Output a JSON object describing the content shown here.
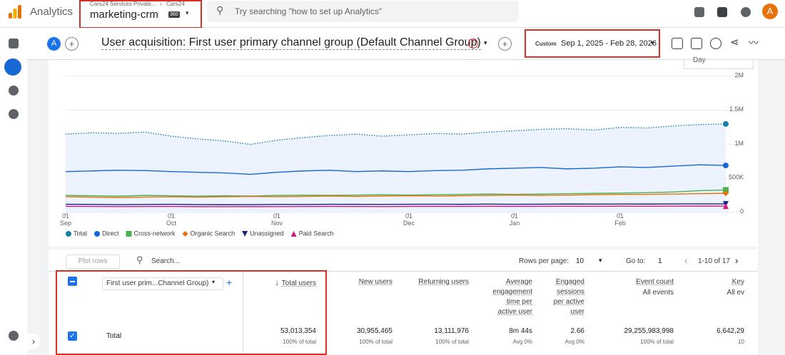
{
  "header": {
    "product": "Analytics",
    "account": "Cars24 Services Private...",
    "property_parent": "Cars24",
    "property": "marketing-crm",
    "badge": "360",
    "search_placeholder": "Try searching \"how to set up Analytics\"",
    "user_avatar": "A"
  },
  "report": {
    "comparison_avatar": "A",
    "title": "User acquisition: First user primary channel group (Default Channel Group)",
    "date_label": "Custom",
    "date_range": "Sep 1, 2025 - Feb 28, 2026",
    "interval": "Day"
  },
  "chart_data": {
    "type": "line",
    "categories": [
      "01\nSep",
      null,
      null,
      null,
      "01\nOct",
      null,
      null,
      null,
      "01\nNov",
      null,
      null,
      null,
      null,
      "01\nDec",
      null,
      null,
      null,
      "01\nJan",
      null,
      null,
      null,
      "01\nFeb",
      null,
      null,
      null,
      null
    ],
    "ylim": [
      0,
      2000000
    ],
    "yticks": [
      0,
      {
        "value": 500000,
        "label": "500K"
      },
      {
        "value": 1000000,
        "label": "1M"
      },
      {
        "value": 1500000,
        "label": "1.5M"
      },
      {
        "value": 2000000,
        "label": "2M"
      }
    ],
    "grid": true,
    "series": [
      {
        "name": "Total",
        "color": "#1a7fa8",
        "marker": "circle",
        "style": "dotted",
        "area": true,
        "values": [
          1150000,
          1170000,
          1160000,
          1180000,
          1120000,
          1080000,
          1050000,
          1000000,
          1060000,
          1100000,
          1130000,
          1150000,
          1120000,
          1140000,
          1160000,
          1150000,
          1180000,
          1200000,
          1220000,
          1230000,
          1210000,
          1250000,
          1240000,
          1270000,
          1290000,
          1300000
        ]
      },
      {
        "name": "Direct",
        "color": "#1967d2",
        "marker": "circle",
        "values": [
          600000,
          610000,
          620000,
          615000,
          600000,
          590000,
          580000,
          560000,
          590000,
          610000,
          620000,
          600000,
          610000,
          600000,
          615000,
          620000,
          640000,
          650000,
          660000,
          640000,
          650000,
          670000,
          660000,
          680000,
          700000,
          690000
        ]
      },
      {
        "name": "Cross-network",
        "color": "#4caf50",
        "marker": "square",
        "values": [
          250000,
          245000,
          240000,
          250000,
          245000,
          240000,
          245000,
          240000,
          250000,
          255000,
          250000,
          255000,
          260000,
          255000,
          260000,
          265000,
          270000,
          265000,
          270000,
          275000,
          280000,
          285000,
          290000,
          300000,
          320000,
          330000
        ]
      },
      {
        "name": "Organic Search",
        "color": "#e8710a",
        "marker": "diamond",
        "values": [
          230000,
          225000,
          220000,
          225000,
          230000,
          225000,
          230000,
          235000,
          230000,
          235000,
          240000,
          235000,
          240000,
          245000,
          240000,
          245000,
          250000,
          255000,
          250000,
          255000,
          260000,
          265000,
          265000,
          270000,
          275000,
          280000
        ]
      },
      {
        "name": "Unassigned",
        "color": "#1a237e",
        "marker": "triangle-down",
        "values": [
          120000,
          118000,
          115000,
          117000,
          120000,
          116000,
          114000,
          115000,
          118000,
          117000,
          120000,
          119000,
          118000,
          120000,
          121000,
          119000,
          122000,
          120000,
          121000,
          123000,
          122000,
          124000,
          123000,
          125000,
          126000,
          125000
        ]
      },
      {
        "name": "Paid Search",
        "color": "#d01884",
        "marker": "triangle-up",
        "values": [
          90000,
          88000,
          86000,
          87000,
          88000,
          85000,
          84000,
          85000,
          86000,
          87000,
          88000,
          87000,
          86000,
          88000,
          89000,
          88000,
          90000,
          89000,
          90000,
          91000,
          90000,
          92000,
          91000,
          92000,
          93000,
          92000
        ]
      }
    ]
  },
  "table": {
    "plot_rows": "Plot rows",
    "search": "Search...",
    "rows_per_page_label": "Rows per page:",
    "rows_per_page": "10",
    "goto_label": "Go to:",
    "goto": "1",
    "range": "1-10 of 17",
    "dimension": "First user prim...Channel Group)",
    "columns": [
      {
        "label": "Total users",
        "sorted": true
      },
      {
        "label": "New users"
      },
      {
        "label": "Returning users"
      },
      {
        "label": "Average engagement time per active user"
      },
      {
        "label": "Engaged sessions per active user"
      },
      {
        "label": "Event count",
        "sub": "All events"
      },
      {
        "label": "Key",
        "sub": "All ev"
      }
    ],
    "total_row": {
      "label": "Total",
      "cells": [
        {
          "value": "53,013,354",
          "sub": "100% of total"
        },
        {
          "value": "30,955,465",
          "sub": "100% of total"
        },
        {
          "value": "13,111,976",
          "sub": "100% of total"
        },
        {
          "value": "8m 44s",
          "sub": "Avg 0%"
        },
        {
          "value": "2.66",
          "sub": "Avg 0%"
        },
        {
          "value": "29,255,983,998",
          "sub": "100% of total"
        },
        {
          "value": "6,642,29",
          "sub": "10"
        }
      ]
    }
  }
}
